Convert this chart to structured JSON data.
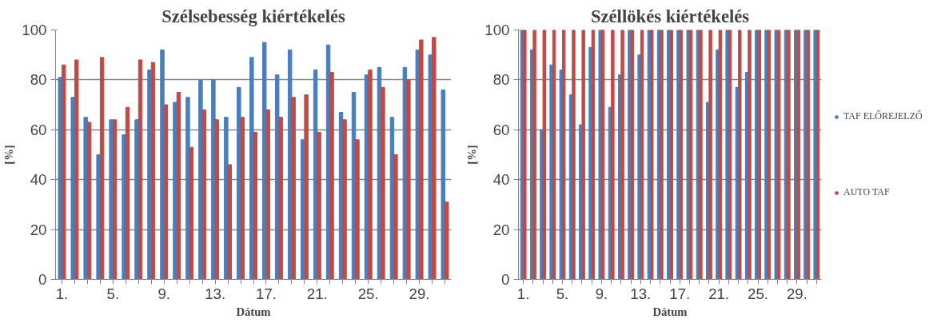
{
  "chart_data": [
    {
      "type": "bar",
      "title": "Szélsebesség kiértékelés",
      "xlabel": "Dátum",
      "ylabel": "[%]",
      "categories": [
        "1.",
        null,
        null,
        null,
        "5.",
        null,
        null,
        null,
        "9.",
        null,
        null,
        null,
        "13.",
        null,
        null,
        null,
        "17.",
        null,
        null,
        null,
        "21.",
        null,
        null,
        null,
        "25.",
        null,
        null,
        null,
        "29.",
        null,
        null
      ],
      "series": [
        {
          "color": "#4a7ebb",
          "values": [
            81,
            73,
            65,
            50,
            64,
            58,
            64,
            84,
            92,
            71,
            73,
            80,
            80,
            65,
            77,
            89,
            95,
            82,
            92,
            56,
            84,
            94,
            67,
            75,
            82,
            85,
            65,
            85,
            92,
            90,
            76
          ]
        },
        {
          "color": "#be4b48",
          "values": [
            86,
            88,
            63,
            89,
            64,
            69,
            88,
            87,
            70,
            75,
            53,
            68,
            64,
            46,
            65,
            59,
            68,
            65,
            73,
            74,
            59,
            83,
            64,
            56,
            84,
            77,
            50,
            80,
            96,
            97,
            31
          ]
        }
      ],
      "ylim": [
        0,
        100
      ],
      "yticks": [
        0,
        20,
        40,
        60,
        80,
        100
      ],
      "grid": "y",
      "legend": false
    },
    {
      "type": "bar",
      "title": "Széllökés kiértékelés",
      "xlabel": "Dátum",
      "ylabel": "[%]",
      "categories": [
        "1.",
        null,
        null,
        null,
        "5.",
        null,
        null,
        null,
        "9.",
        null,
        null,
        null,
        "13.",
        null,
        null,
        null,
        "17.",
        null,
        null,
        null,
        "21.",
        null,
        null,
        null,
        "25.",
        null,
        null,
        null,
        "29.",
        null,
        null
      ],
      "series": [
        {
          "name": "TAF ELŐREJELZŐ",
          "color": "#4a7ebb",
          "values": [
            100,
            92,
            60,
            86,
            84,
            74,
            62,
            93,
            100,
            69,
            82,
            100,
            90,
            100,
            100,
            100,
            100,
            100,
            100,
            71,
            92,
            100,
            77,
            83,
            100,
            100,
            100,
            100,
            100,
            100,
            100
          ]
        },
        {
          "name": "AUTO TAF",
          "color": "#be4b48",
          "values": [
            100,
            100,
            100,
            100,
            100,
            100,
            100,
            100,
            100,
            100,
            100,
            100,
            100,
            100,
            100,
            100,
            100,
            100,
            100,
            100,
            100,
            100,
            100,
            100,
            100,
            100,
            100,
            100,
            100,
            100,
            100
          ]
        }
      ],
      "ylim": [
        0,
        100
      ],
      "yticks": [
        0,
        20,
        40,
        60,
        80,
        100
      ],
      "grid": "y",
      "legend": "right"
    }
  ]
}
